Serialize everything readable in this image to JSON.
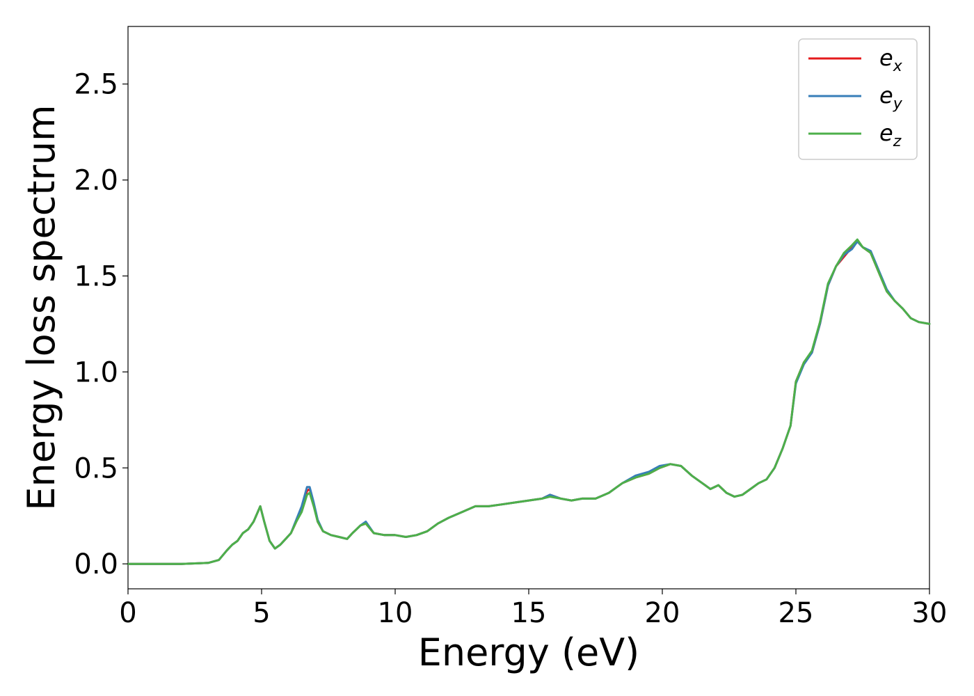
{
  "chart_data": {
    "type": "line",
    "xlabel": "Energy (eV)",
    "ylabel": "Energy loss spectrum",
    "xlim": [
      0,
      30
    ],
    "ylim": [
      -0.13,
      2.8
    ],
    "xticks": [
      0,
      5,
      10,
      15,
      20,
      25,
      30
    ],
    "xtick_labels": [
      "0",
      "5",
      "10",
      "15",
      "20",
      "25",
      "30"
    ],
    "yticks": [
      0.0,
      0.5,
      1.0,
      1.5,
      2.0,
      2.5
    ],
    "ytick_labels": [
      "0.0",
      "0.5",
      "1.0",
      "1.5",
      "2.0",
      "2.5"
    ],
    "grid": false,
    "legend_position": "top-right",
    "x": [
      0,
      1,
      2,
      3,
      3.4,
      3.7,
      3.9,
      4.1,
      4.3,
      4.5,
      4.7,
      4.95,
      5.1,
      5.3,
      5.5,
      5.7,
      5.9,
      6.1,
      6.3,
      6.5,
      6.7,
      6.8,
      6.95,
      7.1,
      7.3,
      7.6,
      7.9,
      8.2,
      8.4,
      8.7,
      8.9,
      9.2,
      9.6,
      10.0,
      10.4,
      10.8,
      11.2,
      11.6,
      12.0,
      12.5,
      13.0,
      13.5,
      14.0,
      14.5,
      15.0,
      15.5,
      15.8,
      16.2,
      16.6,
      17.0,
      17.5,
      18.0,
      18.5,
      19.0,
      19.5,
      19.9,
      20.3,
      20.7,
      21.1,
      21.5,
      21.8,
      22.1,
      22.4,
      22.7,
      23.0,
      23.3,
      23.6,
      23.9,
      24.2,
      24.5,
      24.8,
      25.0,
      25.3,
      25.6,
      25.9,
      26.2,
      26.5,
      26.8,
      27.1,
      27.3,
      27.5,
      27.8,
      28.1,
      28.4,
      28.7,
      29.0,
      29.3,
      29.6,
      30.0
    ],
    "series": [
      {
        "name": "e_x",
        "color": "#e41a1c",
        "values": [
          0,
          0,
          0,
          0.005,
          0.02,
          0.07,
          0.1,
          0.12,
          0.16,
          0.18,
          0.22,
          0.3,
          0.22,
          0.12,
          0.08,
          0.1,
          0.13,
          0.16,
          0.22,
          0.28,
          0.38,
          0.39,
          0.31,
          0.22,
          0.17,
          0.15,
          0.14,
          0.13,
          0.16,
          0.2,
          0.21,
          0.16,
          0.15,
          0.15,
          0.14,
          0.15,
          0.17,
          0.21,
          0.24,
          0.27,
          0.3,
          0.3,
          0.31,
          0.32,
          0.33,
          0.34,
          0.36,
          0.34,
          0.33,
          0.34,
          0.34,
          0.37,
          0.42,
          0.45,
          0.47,
          0.5,
          0.52,
          0.51,
          0.46,
          0.42,
          0.39,
          0.41,
          0.37,
          0.35,
          0.36,
          0.39,
          0.42,
          0.44,
          0.5,
          0.6,
          0.72,
          0.95,
          1.05,
          1.1,
          1.25,
          1.45,
          1.55,
          1.6,
          1.65,
          1.68,
          1.65,
          1.62,
          1.52,
          1.42,
          1.37,
          1.33,
          1.28,
          1.26,
          1.25
        ]
      },
      {
        "name": "e_y",
        "color": "#377eb8",
        "values": [
          0,
          0,
          0,
          0.005,
          0.02,
          0.07,
          0.1,
          0.12,
          0.16,
          0.18,
          0.22,
          0.3,
          0.22,
          0.12,
          0.08,
          0.1,
          0.13,
          0.16,
          0.23,
          0.3,
          0.4,
          0.4,
          0.32,
          0.23,
          0.17,
          0.15,
          0.14,
          0.13,
          0.16,
          0.2,
          0.22,
          0.16,
          0.15,
          0.15,
          0.14,
          0.15,
          0.17,
          0.21,
          0.24,
          0.27,
          0.3,
          0.3,
          0.31,
          0.32,
          0.33,
          0.34,
          0.36,
          0.34,
          0.33,
          0.34,
          0.34,
          0.37,
          0.42,
          0.46,
          0.48,
          0.51,
          0.52,
          0.51,
          0.46,
          0.42,
          0.39,
          0.41,
          0.37,
          0.35,
          0.36,
          0.39,
          0.42,
          0.44,
          0.5,
          0.6,
          0.72,
          0.94,
          1.04,
          1.1,
          1.25,
          1.45,
          1.55,
          1.61,
          1.64,
          1.68,
          1.65,
          1.63,
          1.53,
          1.43,
          1.37,
          1.33,
          1.28,
          1.26,
          1.25
        ]
      },
      {
        "name": "e_z",
        "color": "#4daf4a",
        "values": [
          0,
          0,
          0,
          0.005,
          0.02,
          0.07,
          0.1,
          0.12,
          0.16,
          0.18,
          0.22,
          0.3,
          0.22,
          0.12,
          0.08,
          0.1,
          0.13,
          0.16,
          0.22,
          0.27,
          0.36,
          0.37,
          0.3,
          0.22,
          0.17,
          0.15,
          0.14,
          0.13,
          0.16,
          0.2,
          0.21,
          0.16,
          0.15,
          0.15,
          0.14,
          0.15,
          0.17,
          0.21,
          0.24,
          0.27,
          0.3,
          0.3,
          0.31,
          0.32,
          0.33,
          0.34,
          0.35,
          0.34,
          0.33,
          0.34,
          0.34,
          0.37,
          0.42,
          0.45,
          0.47,
          0.5,
          0.52,
          0.51,
          0.46,
          0.42,
          0.39,
          0.41,
          0.37,
          0.35,
          0.36,
          0.39,
          0.42,
          0.44,
          0.5,
          0.6,
          0.72,
          0.95,
          1.05,
          1.11,
          1.26,
          1.46,
          1.55,
          1.62,
          1.66,
          1.69,
          1.65,
          1.62,
          1.52,
          1.42,
          1.37,
          1.33,
          1.28,
          1.26,
          1.25
        ]
      }
    ]
  },
  "legend": {
    "items": [
      {
        "base": "e",
        "sub": "x",
        "color": "#e41a1c"
      },
      {
        "base": "e",
        "sub": "y",
        "color": "#377eb8"
      },
      {
        "base": "e",
        "sub": "z",
        "color": "#4daf4a"
      }
    ]
  }
}
